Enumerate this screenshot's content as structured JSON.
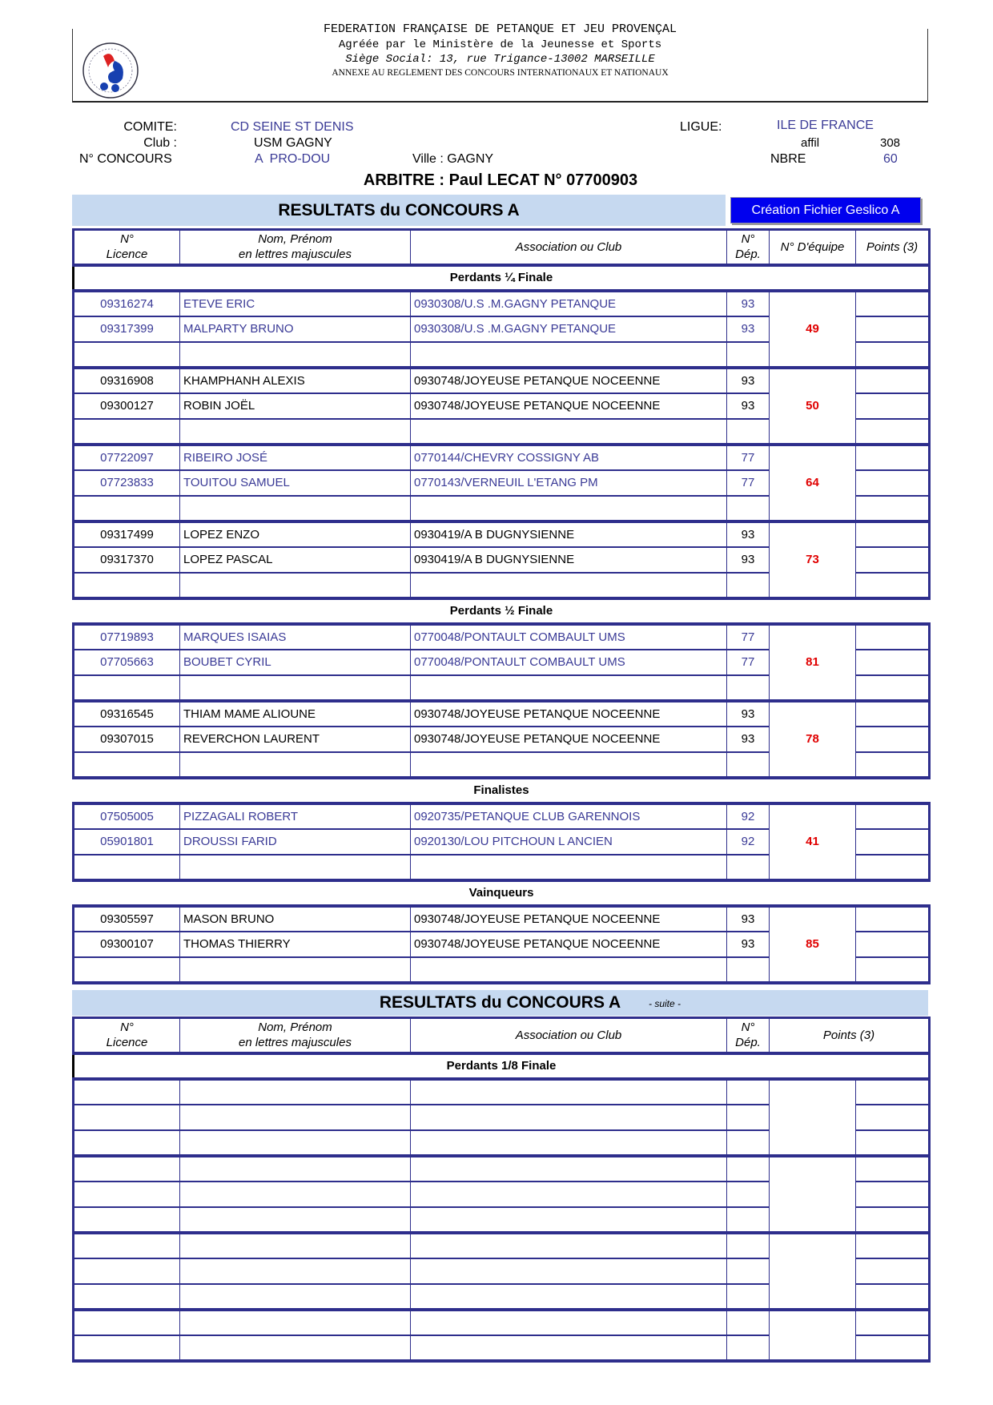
{
  "header": {
    "federation": "FEDERATION FRANÇAISE DE PETANQUE ET JEU PROVENÇAL",
    "agree": "Agréée par le Ministère de la Jeunesse et Sports",
    "siege": "Siège Social: 13, rue Trigance-13002 MARSEILLE",
    "annexe": "ANNEXE AU REGLEMENT DES CONCOURS INTERNATIONAUX ET NATIONAUX"
  },
  "info": {
    "comite_label": "COMITE:",
    "comite": "CD SEINE ST DENIS",
    "club_label": "Club :",
    "club": "USM GAGNY",
    "concours_label": "N° CONCOURS",
    "concours": "A  PRO-DOU",
    "ville": "Ville : GAGNY",
    "ligue_label": "LIGUE:",
    "ligue": "ILE DE FRANCE",
    "affil_label": "affil",
    "affil": "308",
    "nbre_label": "NBRE",
    "nbre": "60",
    "arbitre": "ARBITRE : Paul LECAT N° 07700903"
  },
  "colors": {
    "border": "#2e2e8c",
    "blue_text": "#3a3a96",
    "team_number": "#e00000",
    "bar": "#c6d9f0",
    "button": "#0000ee"
  },
  "section1": {
    "title": "RESULTATS du CONCOURS A",
    "button": "Création Fichier Geslico A",
    "columns": [
      "N°\nLicence",
      "Nom, Prénom\nen lettres majuscules",
      "Association ou Club",
      "N°\nDép.",
      "N° D'équipe",
      "Points (3)"
    ],
    "rounds": [
      {
        "label": "Perdants ¼ Finale",
        "groups": [
          {
            "team": "49",
            "blue": true,
            "players": [
              [
                "09316274",
                "ETEVE ERIC",
                "0930308/U.S .M.GAGNY PETANQUE",
                "93"
              ],
              [
                "09317399",
                "MALPARTY BRUNO",
                "0930308/U.S .M.GAGNY PETANQUE",
                "93"
              ]
            ]
          },
          {
            "team": "50",
            "blue": false,
            "players": [
              [
                "09316908",
                "KHAMPHANH ALEXIS",
                "0930748/JOYEUSE PETANQUE NOCEENNE",
                "93"
              ],
              [
                "09300127",
                "ROBIN JOËL",
                "0930748/JOYEUSE PETANQUE NOCEENNE",
                "93"
              ]
            ]
          },
          {
            "team": "64",
            "blue": true,
            "players": [
              [
                "07722097",
                "RIBEIRO JOSÉ",
                "0770144/CHEVRY  COSSIGNY AB",
                "77"
              ],
              [
                "07723833",
                "TOUITOU SAMUEL",
                "0770143/VERNEUIL L'ETANG PM",
                "77"
              ]
            ]
          },
          {
            "team": "73",
            "blue": false,
            "players": [
              [
                "09317499",
                "LOPEZ ENZO",
                "0930419/A B  DUGNYSIENNE",
                "93"
              ],
              [
                "09317370",
                "LOPEZ PASCAL",
                "0930419/A B  DUGNYSIENNE",
                "93"
              ]
            ]
          }
        ]
      },
      {
        "label": "Perdants ½ Finale",
        "groups": [
          {
            "team": "81",
            "blue": true,
            "players": [
              [
                "07719893",
                "MARQUES ISAIAS",
                "0770048/PONTAULT COMBAULT UMS",
                "77"
              ],
              [
                "07705663",
                "BOUBET CYRIL",
                "0770048/PONTAULT COMBAULT UMS",
                "77"
              ]
            ]
          },
          {
            "team": "78",
            "blue": false,
            "players": [
              [
                "09316545",
                "THIAM MAME ALIOUNE",
                "0930748/JOYEUSE PETANQUE NOCEENNE",
                "93"
              ],
              [
                "09307015",
                "REVERCHON LAURENT",
                "0930748/JOYEUSE PETANQUE NOCEENNE",
                "93"
              ]
            ]
          }
        ]
      },
      {
        "label": "Finalistes",
        "groups": [
          {
            "team": "41",
            "blue": true,
            "players": [
              [
                "07505005",
                "PIZZAGALI ROBERT",
                "0920735/PETANQUE CLUB GARENNOIS",
                "92"
              ],
              [
                "05901801",
                "DROUSSI FARID",
                "0920130/LOU PITCHOUN L ANCIEN",
                "92"
              ]
            ]
          }
        ]
      },
      {
        "label": "Vainqueurs",
        "groups": [
          {
            "team": "85",
            "blue": false,
            "players": [
              [
                "09305597",
                "MASON BRUNO",
                "0930748/JOYEUSE PETANQUE NOCEENNE",
                "93"
              ],
              [
                "09300107",
                "THOMAS THIERRY",
                "0930748/JOYEUSE PETANQUE NOCEENNE",
                "93"
              ]
            ]
          }
        ]
      }
    ]
  },
  "section2": {
    "title": "RESULTATS du CONCOURS A",
    "suite": "- suite -",
    "columns": [
      "N°\nLicence",
      "Nom, Prénom\nen lettres majuscules",
      "Association ou Club",
      "N°\nDép.",
      "Points (3)"
    ],
    "round_label": "Perdants 1/8 Finale"
  }
}
